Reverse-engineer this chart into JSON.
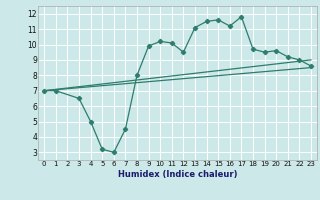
{
  "xlabel": "Humidex (Indice chaleur)",
  "xlim": [
    -0.5,
    23.5
  ],
  "ylim": [
    2.5,
    12.5
  ],
  "xticks": [
    0,
    1,
    2,
    3,
    4,
    5,
    6,
    7,
    8,
    9,
    10,
    11,
    12,
    13,
    14,
    15,
    16,
    17,
    18,
    19,
    20,
    21,
    22,
    23
  ],
  "yticks": [
    3,
    4,
    5,
    6,
    7,
    8,
    9,
    10,
    11,
    12
  ],
  "bg_color": "#cce8e8",
  "grid_color": "#ffffff",
  "line_color": "#2e7d6e",
  "line1_x": [
    0,
    1,
    3,
    4,
    5,
    6,
    7,
    8,
    9,
    10,
    11,
    12,
    13,
    14,
    15,
    16,
    17,
    18,
    19,
    20,
    21,
    22,
    23
  ],
  "line1_y": [
    7.0,
    7.0,
    6.5,
    5.0,
    3.2,
    3.0,
    4.5,
    8.0,
    9.9,
    10.2,
    10.1,
    9.5,
    11.1,
    11.5,
    11.6,
    11.2,
    11.8,
    9.7,
    9.5,
    9.6,
    9.2,
    9.0,
    8.6
  ],
  "line2_x": [
    0,
    23
  ],
  "line2_y": [
    7.0,
    9.0
  ],
  "line3_x": [
    0,
    23
  ],
  "line3_y": [
    7.0,
    8.5
  ],
  "marker": "D",
  "markersize": 2.2,
  "linewidth": 0.9
}
